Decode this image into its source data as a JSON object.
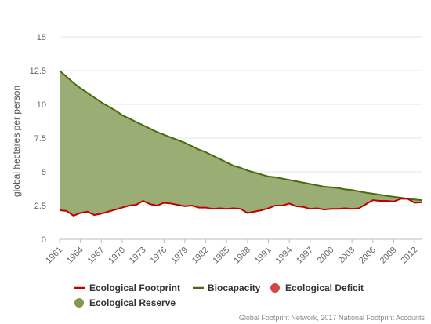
{
  "chart_data": {
    "type": "area",
    "ylabel": "global hectares per person",
    "ylim": [
      0,
      15
    ],
    "yticks": [
      "0",
      "2.5",
      "5",
      "7.5",
      "10",
      "12.5",
      "15"
    ],
    "xticks": [
      "1961",
      "1964",
      "1967",
      "1970",
      "1973",
      "1976",
      "1979",
      "1982",
      "1985",
      "1988",
      "1991",
      "1994",
      "1997",
      "2000",
      "2003",
      "2006",
      "2009",
      "2012"
    ],
    "x": [
      1961,
      1962,
      1963,
      1964,
      1965,
      1966,
      1967,
      1968,
      1969,
      1970,
      1971,
      1972,
      1973,
      1974,
      1975,
      1976,
      1977,
      1978,
      1979,
      1980,
      1981,
      1982,
      1983,
      1984,
      1985,
      1986,
      1987,
      1988,
      1989,
      1990,
      1991,
      1992,
      1993,
      1994,
      1995,
      1996,
      1997,
      1998,
      1999,
      2000,
      2001,
      2002,
      2003,
      2004,
      2005,
      2006,
      2007,
      2008,
      2009,
      2010,
      2011,
      2012,
      2013
    ],
    "series": [
      {
        "name": "Ecological Footprint",
        "color": "#c00000",
        "values": [
          2.15,
          2.1,
          1.75,
          1.95,
          2.05,
          1.8,
          1.9,
          2.05,
          2.2,
          2.35,
          2.5,
          2.55,
          2.85,
          2.6,
          2.5,
          2.7,
          2.65,
          2.55,
          2.45,
          2.5,
          2.35,
          2.35,
          2.25,
          2.3,
          2.25,
          2.3,
          2.25,
          1.95,
          2.05,
          2.15,
          2.3,
          2.5,
          2.5,
          2.65,
          2.45,
          2.4,
          2.25,
          2.3,
          2.2,
          2.25,
          2.25,
          2.3,
          2.25,
          2.3,
          2.6,
          2.9,
          2.85,
          2.85,
          2.8,
          3.0,
          3.0,
          2.7,
          2.75
        ]
      },
      {
        "name": "Biocapacity",
        "color": "#4a6b0a",
        "values": [
          12.5,
          12.05,
          11.6,
          11.2,
          10.85,
          10.5,
          10.15,
          9.85,
          9.55,
          9.2,
          8.95,
          8.7,
          8.45,
          8.2,
          7.95,
          7.75,
          7.55,
          7.35,
          7.15,
          6.9,
          6.65,
          6.45,
          6.2,
          5.95,
          5.7,
          5.45,
          5.3,
          5.1,
          4.95,
          4.8,
          4.65,
          4.6,
          4.5,
          4.4,
          4.3,
          4.2,
          4.1,
          4.0,
          3.9,
          3.85,
          3.8,
          3.7,
          3.65,
          3.55,
          3.45,
          3.38,
          3.3,
          3.22,
          3.15,
          3.08,
          3.0,
          2.95,
          2.9
        ]
      }
    ],
    "areas": [
      {
        "name": "Ecological Deficit",
        "color": "#d64545"
      },
      {
        "name": "Ecological Reserve",
        "color": "#7f9c4e"
      }
    ],
    "legend": [
      {
        "name": "Ecological Footprint",
        "marker": "line",
        "color": "#c00000"
      },
      {
        "name": "Biocapacity",
        "marker": "line",
        "color": "#4a6b0a"
      },
      {
        "name": "Ecological Deficit",
        "marker": "circle",
        "color": "#d64545"
      },
      {
        "name": "Ecological Reserve",
        "marker": "circle",
        "color": "#7f9c4e"
      }
    ],
    "grid": true,
    "legend_position": "bottom-left"
  },
  "credit": "Global Footprint Network, 2017 National Footprint Accounts"
}
